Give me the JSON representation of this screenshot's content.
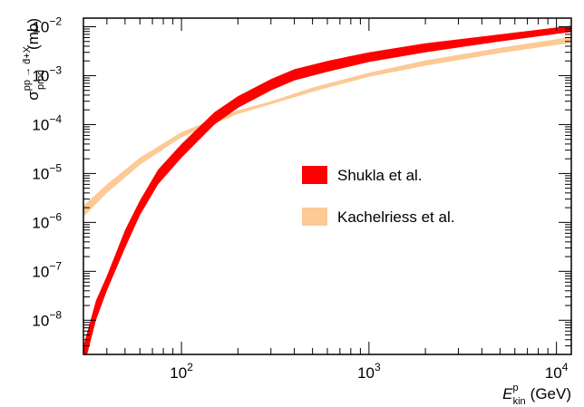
{
  "chart_data": {
    "type": "area",
    "xscale": "log",
    "yscale": "log",
    "xlim": [
      30,
      12000
    ],
    "ylim": [
      2e-09,
      0.015
    ],
    "grid": false,
    "legend_placement": "center-right",
    "xlabel": {
      "var": "E",
      "sup": "p",
      "sub": "kin",
      "unit": "(GeV)"
    },
    "ylabel": {
      "var": "σ",
      "sup": "pp → d̄+X",
      "sub": "prod",
      "unit": "(mb)"
    },
    "x_ticks": [
      {
        "value": 100,
        "base": "10",
        "exp": "2"
      },
      {
        "value": 1000,
        "base": "10",
        "exp": "3"
      },
      {
        "value": 10000,
        "base": "10",
        "exp": "4"
      }
    ],
    "y_ticks": [
      {
        "value": 1e-08,
        "base": "10",
        "exp": "−8"
      },
      {
        "value": 1e-07,
        "base": "10",
        "exp": "−7"
      },
      {
        "value": 1e-06,
        "base": "10",
        "exp": "−6"
      },
      {
        "value": 1e-05,
        "base": "10",
        "exp": "−5"
      },
      {
        "value": 0.0001,
        "base": "10",
        "exp": "−4"
      },
      {
        "value": 0.001,
        "base": "10",
        "exp": "−3"
      },
      {
        "value": 0.01,
        "base": "10",
        "exp": "−2"
      }
    ],
    "series": [
      {
        "name": "Kachelriess et al.",
        "color": "#fdc994",
        "x": [
          30,
          40,
          60,
          100,
          150,
          200,
          300,
          500,
          1000,
          2000,
          5000,
          12000
        ],
        "lower": [
          1.3e-06,
          4e-06,
          1.5e-05,
          5.5e-05,
          0.000105,
          0.000165,
          0.00026,
          0.00047,
          0.00095,
          0.0016,
          0.0029,
          0.0047
        ],
        "upper": [
          2.2e-06,
          6e-06,
          2.1e-05,
          7e-05,
          0.00013,
          0.000195,
          0.0003,
          0.00057,
          0.00115,
          0.00205,
          0.0037,
          0.0062
        ]
      },
      {
        "name": "Shukla et al.",
        "color": "#fe0000",
        "x": [
          30,
          35,
          40,
          50,
          60,
          75,
          100,
          150,
          200,
          300,
          400,
          600,
          1000,
          2000,
          5000,
          12000
        ],
        "lower": [
          1e-09,
          1e-08,
          4e-08,
          3e-07,
          1.4e-06,
          6e-06,
          2.1e-05,
          0.0001,
          0.00022,
          0.0005,
          0.0008,
          0.0012,
          0.0019,
          0.003,
          0.005,
          0.0078
        ],
        "upper": [
          3e-09,
          2.5e-08,
          8e-08,
          7e-07,
          2.8e-06,
          1.2e-05,
          4e-05,
          0.00018,
          0.00038,
          0.00085,
          0.00135,
          0.002,
          0.003,
          0.0046,
          0.007,
          0.0105
        ]
      }
    ]
  }
}
